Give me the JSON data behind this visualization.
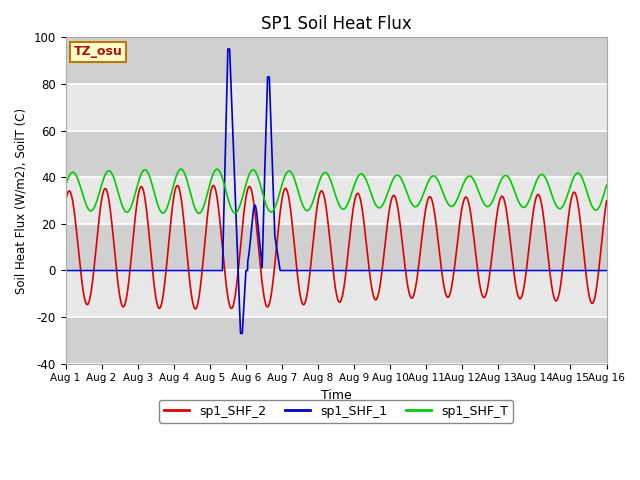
{
  "title": "SP1 Soil Heat Flux",
  "xlabel": "Time",
  "ylabel": "Soil Heat Flux (W/m2), SoilT (C)",
  "xlim": [
    0,
    15
  ],
  "ylim": [
    -40,
    100
  ],
  "yticks": [
    -40,
    -20,
    0,
    20,
    40,
    60,
    80,
    100
  ],
  "xtick_labels": [
    "Aug 1",
    "Aug 2",
    "Aug 3",
    "Aug 4",
    "Aug 5",
    "Aug 6",
    "Aug 7",
    "Aug 8",
    "Aug 9",
    "Aug 10",
    "Aug 11",
    "Aug 12",
    "Aug 13",
    "Aug 14",
    "Aug 15",
    "Aug 16"
  ],
  "xtick_positions": [
    0,
    1,
    2,
    3,
    4,
    5,
    6,
    7,
    8,
    9,
    10,
    11,
    12,
    13,
    14,
    15
  ],
  "color_shf2": "#dd0000",
  "color_shf1": "#0000cc",
  "color_shft": "#00cc00",
  "line_width": 1.2,
  "legend_labels": [
    "sp1_SHF_2",
    "sp1_SHF_1",
    "sp1_SHF_T"
  ],
  "tz_label": "TZ_osu",
  "bg_color": "#e8e8e8",
  "fig_bg": "#ffffff",
  "grid_color": "#ffffff",
  "band_color": "#d8d8d8"
}
